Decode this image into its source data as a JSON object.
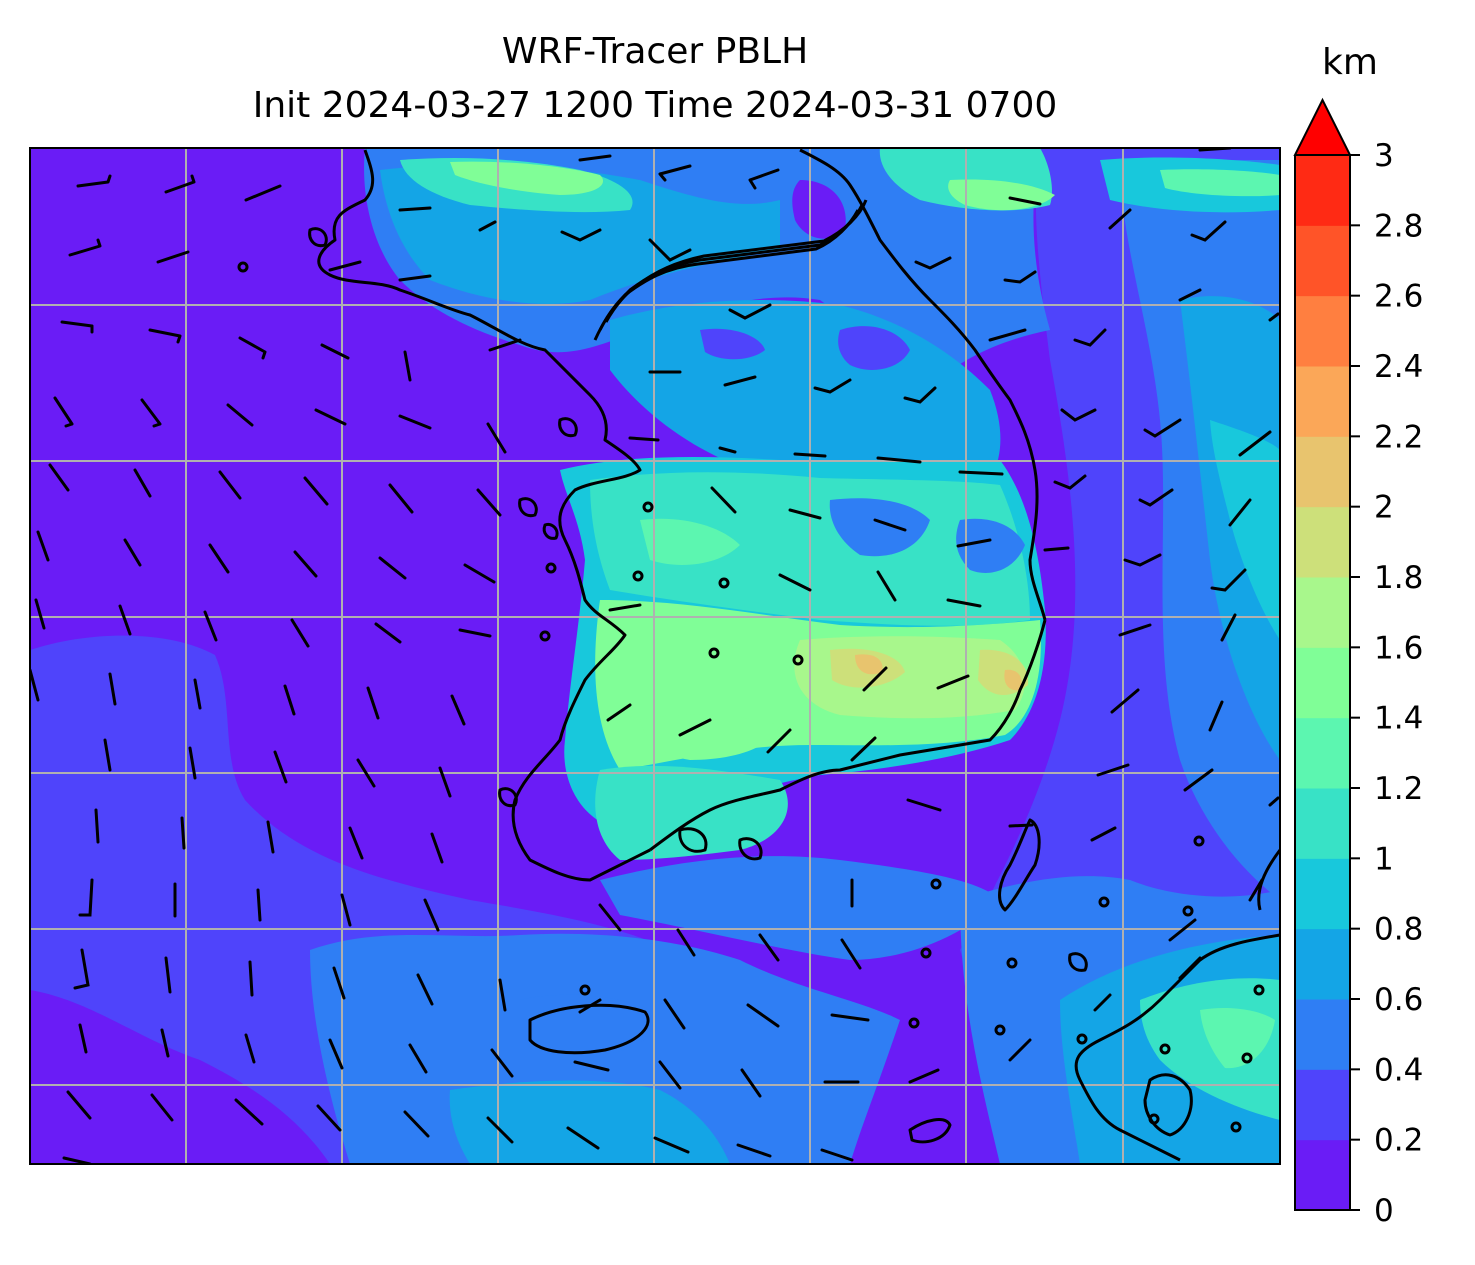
{
  "title": {
    "line1": "WRF-Tracer PBLH",
    "line2": "Init 2024-03-27 1200 Time 2024-03-31 0700"
  },
  "colorbar": {
    "unit": "km",
    "ticks": [
      "0",
      "0.2",
      "0.4",
      "0.6",
      "0.8",
      "1",
      "1.2",
      "1.4",
      "1.6",
      "1.8",
      "2",
      "2.2",
      "2.4",
      "2.6",
      "2.8",
      "3"
    ],
    "levels": [
      0,
      0.2,
      0.4,
      0.6,
      0.8,
      1.0,
      1.2,
      1.4,
      1.6,
      1.8,
      2.0,
      2.2,
      2.4,
      2.6,
      2.8,
      3.0
    ],
    "colors": [
      "#6a1cf6",
      "#4f44fb",
      "#2f7ef4",
      "#14a5e6",
      "#18c8dc",
      "#38e2c6",
      "#5cf6b0",
      "#80fe97",
      "#a8f78c",
      "#cde07a",
      "#e8c46e",
      "#fba758",
      "#ff7f40",
      "#ff5428",
      "#ff2a14"
    ],
    "extend_max_color": "#ff0000"
  },
  "map": {
    "ocean_color": "#6a1cf6",
    "coast_color": "#000000",
    "grid_color": "#b0b0b0",
    "frame_color": "#000000"
  }
}
